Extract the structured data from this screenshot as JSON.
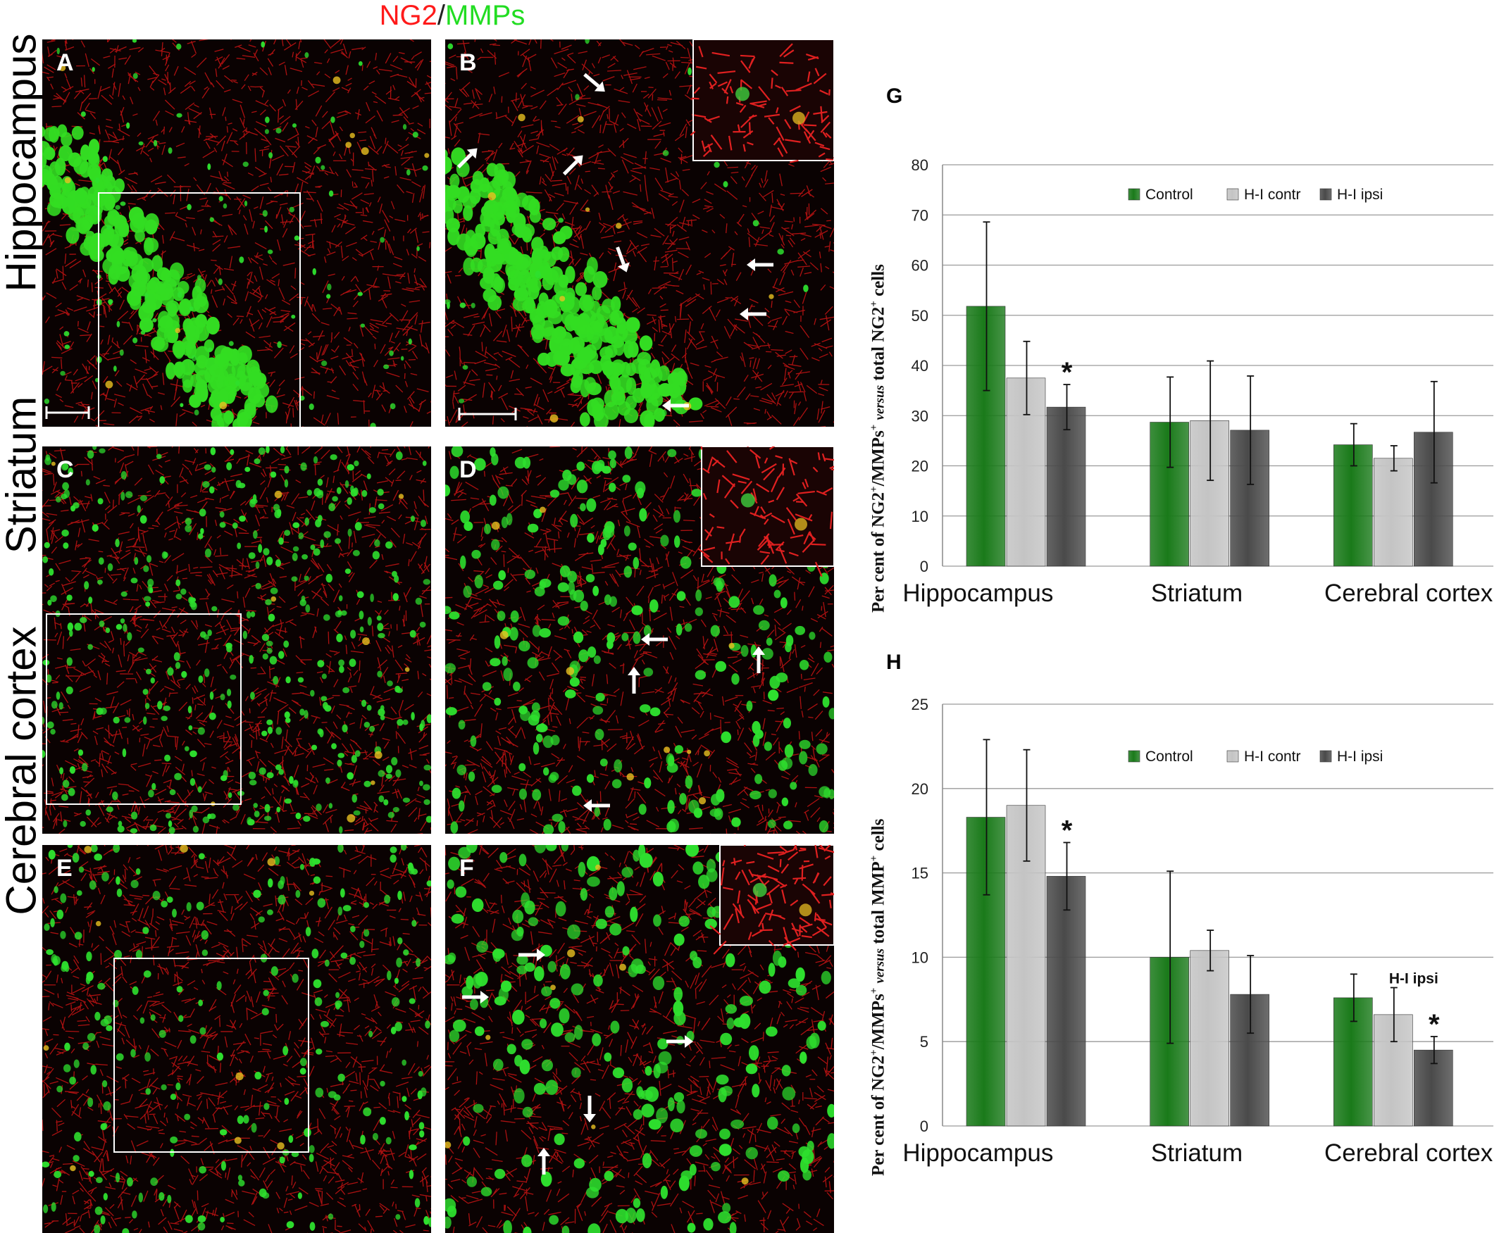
{
  "figure_title": {
    "part1": "NG2",
    "separator": "/",
    "part2": "MMPs"
  },
  "row_labels": [
    "Hippocampus",
    "Striatum",
    "Cerebral cortex"
  ],
  "panel_letters": [
    "A",
    "B",
    "C",
    "D",
    "E",
    "F"
  ],
  "colors": {
    "ng2": "#ff1a1a",
    "mmp": "#22dd22",
    "control": "#1a7a1a",
    "hi_contr": "#c4c4c4",
    "hi_ipsi": "#4a4a4a"
  },
  "chart_data": [
    {
      "panel": "G",
      "type": "bar",
      "title": "",
      "ylabel": {
        "prefix": "Per cent of NG2",
        "mid": "/MMPs",
        "versus": "versus",
        "suffix": "total NG2",
        "tail": "cells"
      },
      "ylim": [
        0,
        80
      ],
      "yticks": [
        0,
        10,
        20,
        30,
        40,
        50,
        60,
        70,
        80
      ],
      "categories": [
        "Hippocampus",
        "Striatum",
        "Cerebral cortex"
      ],
      "legend": "top-right",
      "grid": true,
      "series": [
        {
          "name": "Control",
          "values": [
            51.8,
            28.7,
            24.2
          ],
          "errors": [
            16.8,
            9.0,
            4.2
          ]
        },
        {
          "name": "H-I contr",
          "values": [
            37.5,
            29.0,
            21.5
          ],
          "errors": [
            7.3,
            11.9,
            2.5
          ]
        },
        {
          "name": "H-I ipsi",
          "values": [
            31.7,
            27.1,
            26.7
          ],
          "errors": [
            4.5,
            10.8,
            10.1
          ]
        }
      ],
      "annotations": [
        {
          "category": 0,
          "series": 2,
          "text": "*"
        }
      ]
    },
    {
      "panel": "H",
      "type": "bar",
      "title": "",
      "ylabel": {
        "prefix": "Per cent of NG2",
        "mid": "/MMPs",
        "versus": "versus",
        "suffix": "total MMP",
        "tail": "cells"
      },
      "ylim": [
        0,
        25
      ],
      "yticks": [
        0,
        5,
        10,
        15,
        20,
        25
      ],
      "categories": [
        "Hippocampus",
        "Striatum",
        "Cerebral cortex"
      ],
      "legend": "top-right",
      "grid": true,
      "series": [
        {
          "name": "Control",
          "values": [
            18.3,
            10.0,
            7.6
          ],
          "errors": [
            4.6,
            5.1,
            1.4
          ]
        },
        {
          "name": "H-I contr",
          "values": [
            19.0,
            10.4,
            6.6
          ],
          "errors": [
            3.3,
            1.2,
            1.6
          ]
        },
        {
          "name": "H-I ipsi",
          "values": [
            14.8,
            7.8,
            4.5
          ],
          "errors": [
            2.0,
            2.3,
            0.8
          ]
        }
      ],
      "annotations": [
        {
          "category": 0,
          "series": 2,
          "text": "*"
        },
        {
          "category": 2,
          "series": 2,
          "text": "*"
        },
        {
          "category": 2,
          "series": 1,
          "text": "H-I ipsi",
          "kind": "label"
        }
      ]
    }
  ]
}
